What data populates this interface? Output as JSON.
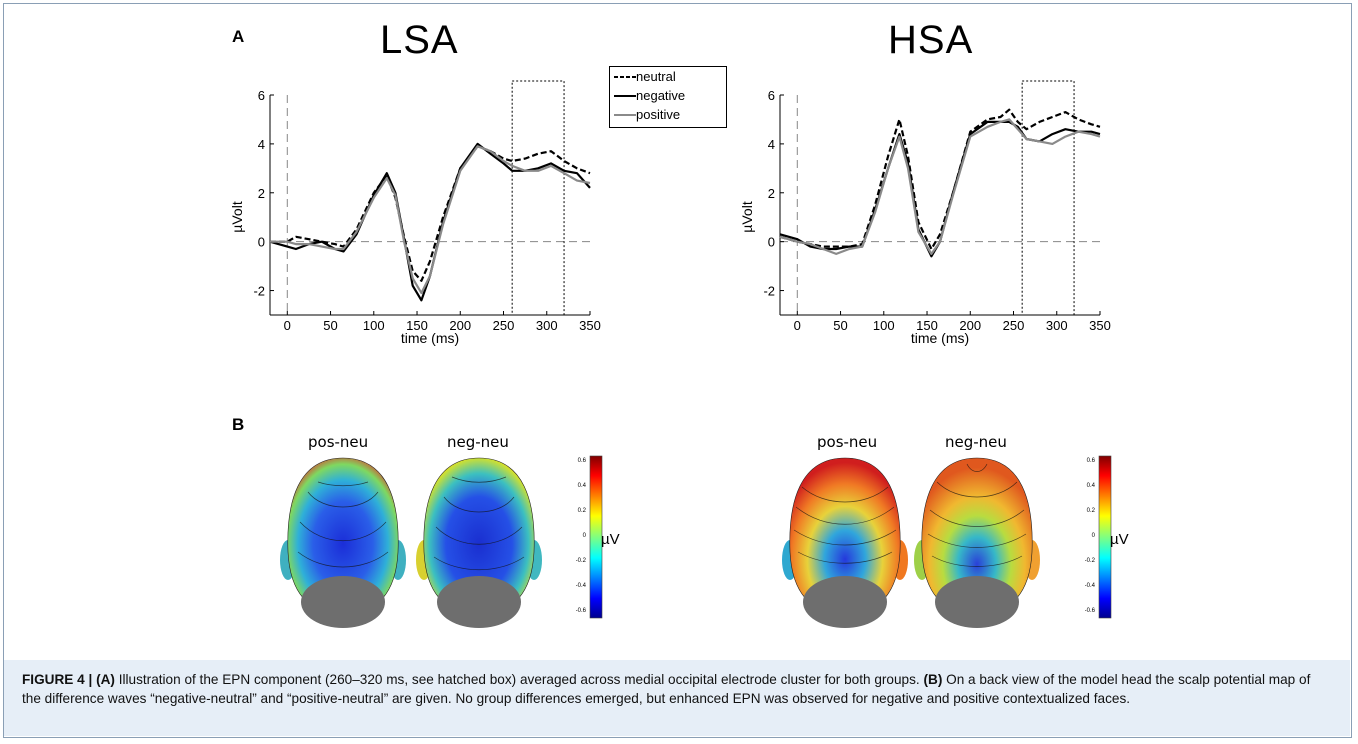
{
  "panels": {
    "a_label": "A",
    "b_label": "B"
  },
  "groups": {
    "lsa_title": "LSA",
    "hsa_title": "HSA"
  },
  "legend": {
    "neutral": "neutral",
    "negative": "negative",
    "positive": "positive"
  },
  "topomaps": {
    "pos_neu": "pos-neu",
    "neg_neu": "neg-neu",
    "unit": "µV",
    "colorbar_ticks": [
      "0.6",
      "0.4",
      "0.2",
      "0",
      "-0.2",
      "-0.4",
      "-0.6"
    ]
  },
  "caption": {
    "figure_label": "FIGURE 4 |",
    "a_ref": "(A)",
    "a_text": " Illustration of the EPN component (260–320 ms, see hatched box) averaged across medial occipital electrode cluster for both groups. ",
    "b_ref": "(B)",
    "b_text": " On a back view of the model head the scalp potential map of the difference waves “negative-neutral” and “positive-neutral” are given. No group differences emerged, but enhanced EPN was observed for negative and positive contextualized faces."
  },
  "colors": {
    "neutral": "#000000",
    "negative": "#000000",
    "positive": "#8a8a8a",
    "caption_bg": "#e6eef7"
  },
  "chart_data": [
    {
      "type": "line",
      "title": "LSA",
      "xlabel": "time (ms)",
      "ylabel": "µVolt",
      "xlim": [
        -20,
        350
      ],
      "ylim": [
        -3,
        6
      ],
      "xticks": [
        0,
        50,
        100,
        150,
        200,
        250,
        300,
        350
      ],
      "yticks": [
        -2,
        0,
        2,
        4,
        6
      ],
      "epn_window": [
        260,
        320
      ],
      "series": [
        {
          "name": "neutral",
          "style": "dashed",
          "x": [
            -20,
            0,
            10,
            25,
            40,
            55,
            65,
            80,
            100,
            115,
            125,
            135,
            145,
            155,
            165,
            180,
            200,
            220,
            235,
            250,
            260,
            275,
            290,
            305,
            320,
            335,
            350
          ],
          "y": [
            0,
            0,
            0.2,
            0.1,
            0,
            -0.1,
            -0.2,
            0.5,
            2.0,
            2.7,
            1.8,
            0.2,
            -1.2,
            -1.6,
            -0.8,
            1.0,
            3.0,
            3.9,
            3.7,
            3.4,
            3.3,
            3.4,
            3.6,
            3.7,
            3.3,
            3.0,
            2.8
          ]
        },
        {
          "name": "negative",
          "style": "solid",
          "x": [
            -20,
            0,
            10,
            25,
            40,
            55,
            65,
            80,
            100,
            115,
            125,
            135,
            145,
            155,
            165,
            180,
            200,
            220,
            235,
            250,
            260,
            275,
            290,
            305,
            320,
            335,
            350
          ],
          "y": [
            0,
            -0.2,
            -0.3,
            -0.1,
            0,
            -0.3,
            -0.4,
            0.3,
            1.9,
            2.8,
            2.0,
            0.1,
            -1.8,
            -2.4,
            -1.4,
            0.8,
            3.0,
            4.0,
            3.6,
            3.2,
            2.9,
            2.9,
            3.0,
            3.2,
            2.9,
            2.8,
            2.2
          ]
        },
        {
          "name": "positive",
          "style": "solid",
          "x": [
            -20,
            0,
            10,
            25,
            40,
            55,
            65,
            80,
            100,
            115,
            125,
            135,
            145,
            155,
            165,
            180,
            200,
            220,
            235,
            250,
            260,
            275,
            290,
            305,
            320,
            335,
            350
          ],
          "y": [
            0,
            0,
            -0.1,
            -0.1,
            -0.2,
            -0.3,
            -0.3,
            0.4,
            1.8,
            2.6,
            1.9,
            0.0,
            -1.5,
            -2.1,
            -1.4,
            0.7,
            2.9,
            3.9,
            3.7,
            3.3,
            3.1,
            2.9,
            2.9,
            3.1,
            2.8,
            2.5,
            2.4
          ]
        }
      ]
    },
    {
      "type": "line",
      "title": "HSA",
      "xlabel": "time (ms)",
      "ylabel": "µVolt",
      "xlim": [
        -20,
        350
      ],
      "ylim": [
        -3,
        6
      ],
      "xticks": [
        0,
        50,
        100,
        150,
        200,
        250,
        300,
        350
      ],
      "yticks": [
        -2,
        0,
        2,
        4,
        6
      ],
      "epn_window": [
        260,
        320
      ],
      "series": [
        {
          "name": "neutral",
          "style": "dashed",
          "x": [
            -20,
            0,
            15,
            30,
            45,
            60,
            75,
            90,
            105,
            118,
            128,
            140,
            155,
            165,
            180,
            200,
            220,
            235,
            245,
            255,
            265,
            280,
            295,
            310,
            325,
            340,
            350
          ],
          "y": [
            0.2,
            0,
            -0.1,
            -0.2,
            -0.2,
            -0.2,
            -0.1,
            1.5,
            3.5,
            5.0,
            3.5,
            0.8,
            -0.3,
            0.3,
            2.0,
            4.5,
            5.0,
            5.1,
            5.4,
            4.9,
            4.6,
            4.9,
            5.1,
            5.3,
            5.0,
            4.8,
            4.7
          ]
        },
        {
          "name": "negative",
          "style": "solid",
          "x": [
            -20,
            0,
            15,
            30,
            45,
            60,
            75,
            90,
            105,
            118,
            128,
            140,
            155,
            165,
            180,
            200,
            220,
            235,
            245,
            255,
            265,
            280,
            295,
            310,
            325,
            340,
            350
          ],
          "y": [
            0.3,
            0.1,
            -0.2,
            -0.3,
            -0.3,
            -0.2,
            -0.2,
            1.3,
            3.0,
            4.4,
            3.2,
            0.5,
            -0.6,
            0.0,
            2.0,
            4.4,
            4.9,
            4.9,
            4.9,
            4.7,
            4.2,
            4.1,
            4.4,
            4.6,
            4.5,
            4.5,
            4.4
          ]
        },
        {
          "name": "positive",
          "style": "solid",
          "x": [
            -20,
            0,
            15,
            30,
            45,
            60,
            75,
            90,
            105,
            118,
            128,
            140,
            155,
            165,
            180,
            200,
            220,
            235,
            245,
            255,
            265,
            280,
            295,
            310,
            325,
            340,
            350
          ],
          "y": [
            0.2,
            0,
            -0.1,
            -0.3,
            -0.5,
            -0.3,
            -0.2,
            1.2,
            3.0,
            4.3,
            3.0,
            0.4,
            -0.5,
            0.0,
            1.9,
            4.3,
            4.7,
            4.9,
            5.0,
            4.6,
            4.2,
            4.1,
            4.0,
            4.3,
            4.5,
            4.4,
            4.3
          ]
        }
      ]
    }
  ]
}
